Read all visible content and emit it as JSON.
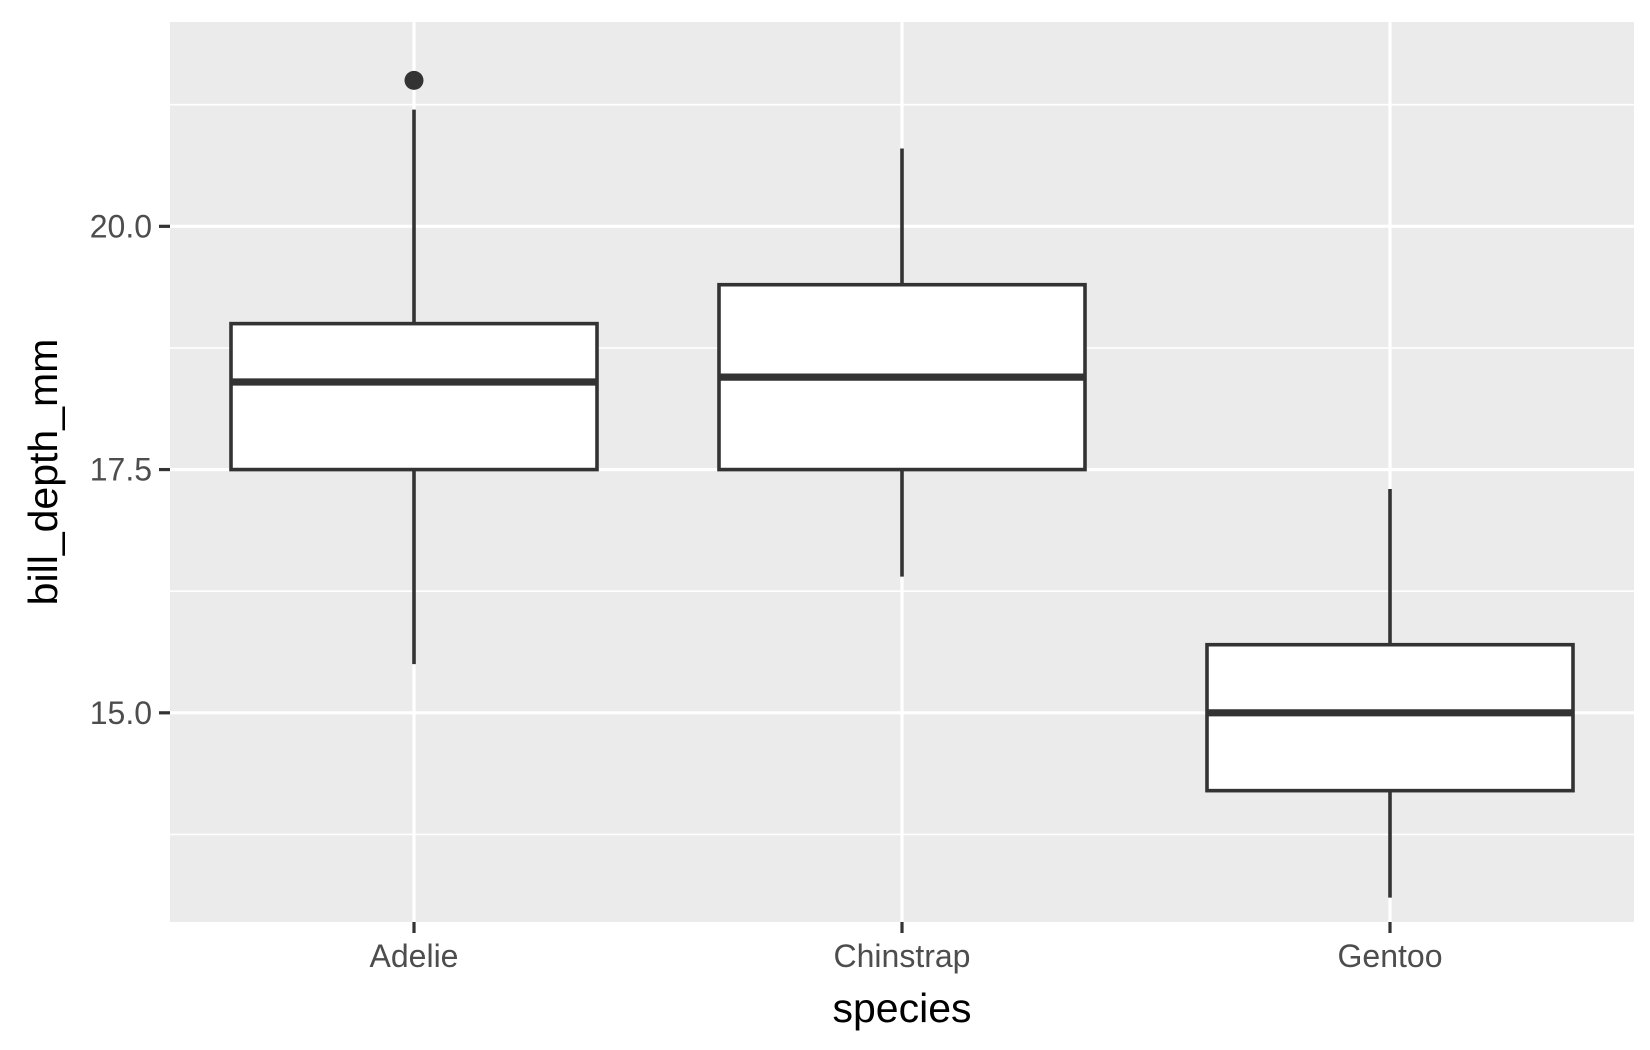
{
  "chart_data": {
    "type": "box",
    "xlabel": "species",
    "ylabel": "bill_depth_mm",
    "categories": [
      "Adelie",
      "Chinstrap",
      "Gentoo"
    ],
    "ylim": [
      12.85,
      22.1
    ],
    "yticks": [
      {
        "value": 15.0,
        "label": "15.0"
      },
      {
        "value": 17.5,
        "label": "17.5"
      },
      {
        "value": 20.0,
        "label": "20.0"
      }
    ],
    "y_minor_ticks": [
      13.75,
      16.25,
      18.75,
      21.25
    ],
    "grid": true,
    "colors": {
      "panel_background": "#ebebeb",
      "grid": "#ffffff",
      "box_fill": "#ffffff",
      "box_line": "#333333",
      "axis_tick": "#333333"
    },
    "boxes": [
      {
        "category": "Adelie",
        "whisker_low": 15.5,
        "q1": 17.5,
        "median": 18.4,
        "q3": 19.0,
        "whisker_high": 21.2,
        "outliers": [
          21.5
        ]
      },
      {
        "category": "Chinstrap",
        "whisker_low": 16.4,
        "q1": 17.5,
        "median": 18.45,
        "q3": 19.4,
        "whisker_high": 20.8,
        "outliers": []
      },
      {
        "category": "Gentoo",
        "whisker_low": 13.1,
        "q1": 14.2,
        "median": 15.0,
        "q3": 15.7,
        "whisker_high": 17.3,
        "outliers": []
      }
    ]
  }
}
